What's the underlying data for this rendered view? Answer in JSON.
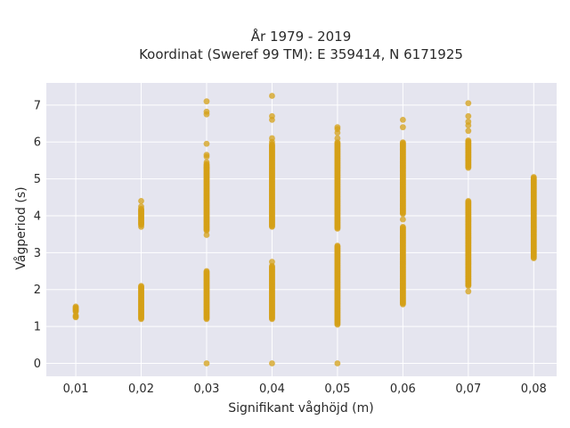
{
  "chart_data": {
    "type": "scatter",
    "title": "År 1979 - 2019",
    "subtitle": "Koordinat (Sweref 99 TM): E 359414, N 6171925",
    "xlabel": "Signifikant våghöjd (m)",
    "ylabel": "Vågperiod (s)",
    "x_categories": [
      "0,01",
      "0,02",
      "0,03",
      "0,04",
      "0,05",
      "0,06",
      "0,07",
      "0,08"
    ],
    "x_values": [
      0.01,
      0.02,
      0.03,
      0.04,
      0.05,
      0.06,
      0.07,
      0.08
    ],
    "xlim": [
      0.0055,
      0.0835
    ],
    "ylim": [
      -0.35,
      7.6
    ],
    "y_ticks": [
      "0",
      "1",
      "2",
      "3",
      "4",
      "5",
      "6",
      "7"
    ],
    "grid": true,
    "legend": "none",
    "colors": {
      "points": "#d4a017",
      "plot_background": "#e5e5ef",
      "grid": "#ffffff"
    },
    "columns": [
      {
        "x": 0.01,
        "ranges": [
          [
            1.4,
            1.55
          ]
        ],
        "points": [
          1.25,
          1.27,
          1.3
        ]
      },
      {
        "x": 0.02,
        "ranges": [
          [
            1.2,
            2.1
          ],
          [
            3.75,
            4.2
          ]
        ],
        "points": [
          4.4,
          3.7,
          4.25
        ]
      },
      {
        "x": 0.03,
        "ranges": [
          [
            1.2,
            2.5
          ],
          [
            3.6,
            5.4
          ]
        ],
        "points": [
          0.0,
          3.48,
          5.6,
          5.65,
          5.95,
          6.75,
          6.82,
          7.1,
          5.3,
          5.45
        ]
      },
      {
        "x": 0.04,
        "ranges": [
          [
            1.2,
            2.65
          ],
          [
            3.7,
            5.95
          ]
        ],
        "points": [
          0.0,
          2.75,
          6.0,
          6.1,
          6.6,
          6.7,
          7.25
        ]
      },
      {
        "x": 0.05,
        "ranges": [
          [
            1.05,
            3.2
          ],
          [
            3.65,
            6.0
          ]
        ],
        "points": [
          0.0,
          6.1,
          6.25,
          6.35,
          6.4
        ]
      },
      {
        "x": 0.06,
        "ranges": [
          [
            1.6,
            3.7
          ],
          [
            4.05,
            6.0
          ]
        ],
        "points": [
          3.9,
          6.4,
          6.6
        ]
      },
      {
        "x": 0.07,
        "ranges": [
          [
            2.1,
            4.4
          ],
          [
            5.3,
            6.05
          ]
        ],
        "points": [
          1.95,
          6.3,
          6.45,
          6.55,
          6.7,
          7.05
        ]
      },
      {
        "x": 0.08,
        "ranges": [
          [
            2.85,
            5.05
          ]
        ],
        "points": []
      }
    ]
  }
}
